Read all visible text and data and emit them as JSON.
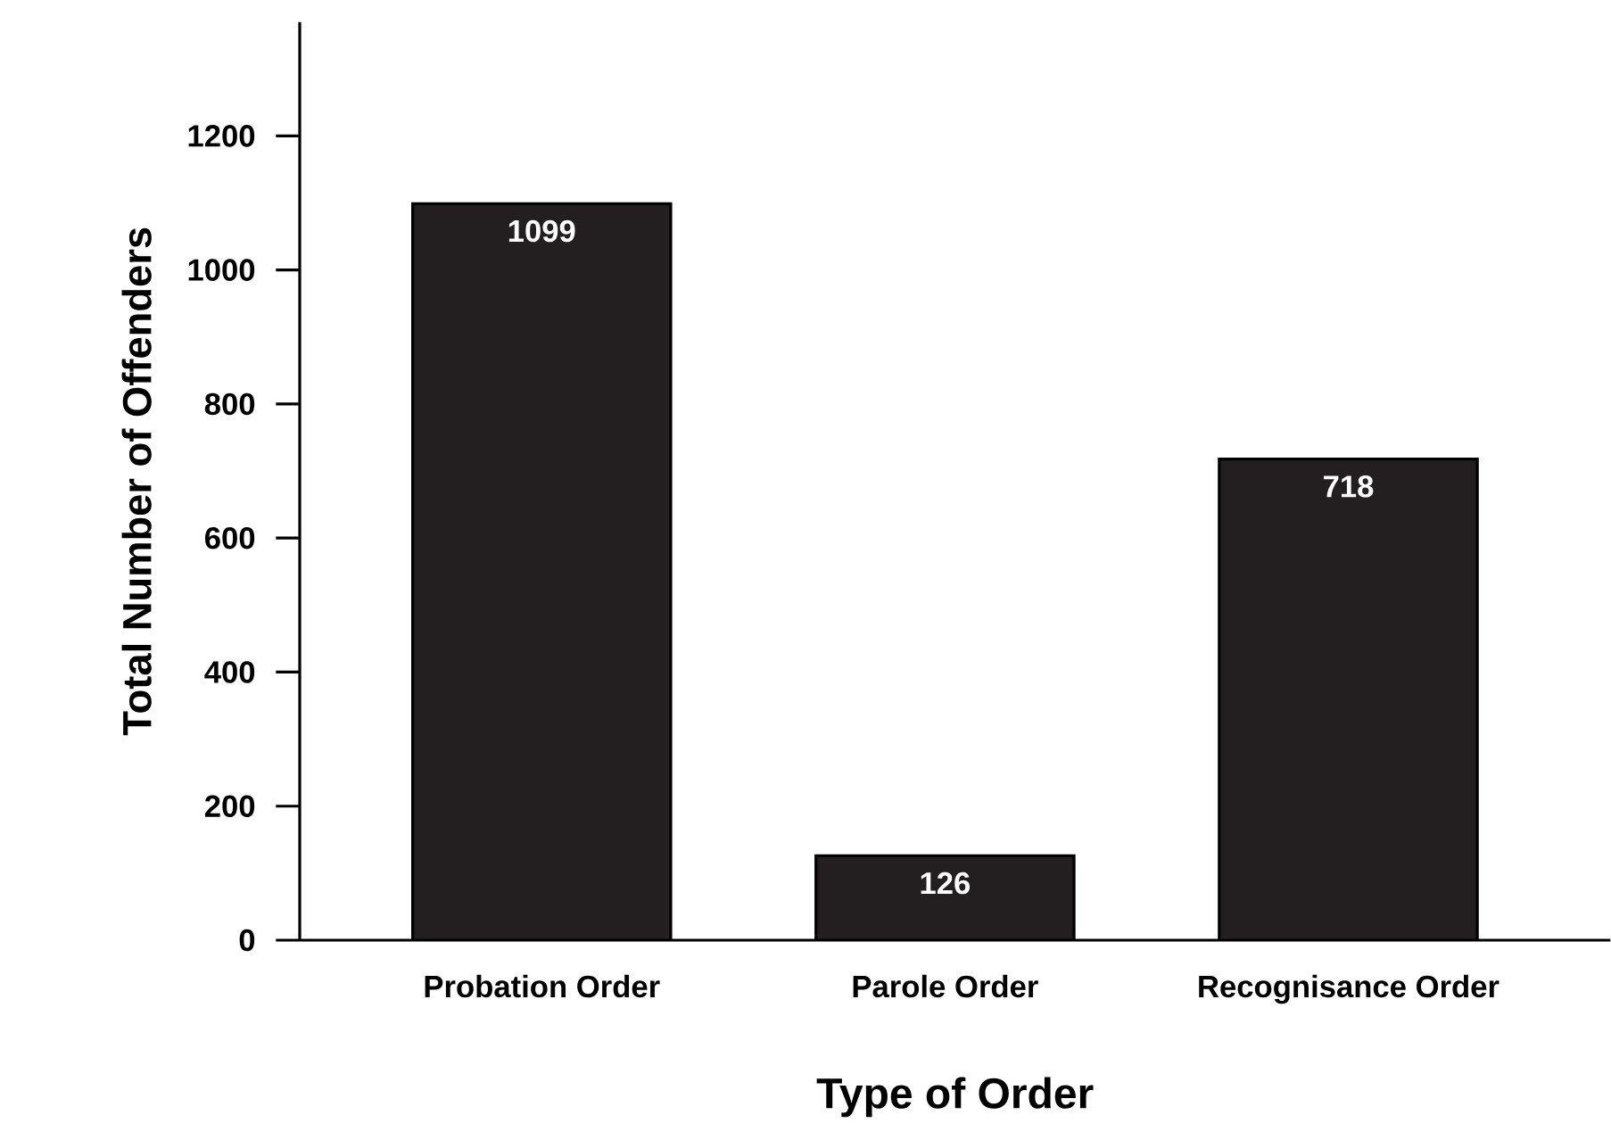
{
  "chart_data": {
    "type": "bar",
    "xlabel": "Type of Order",
    "ylabel": "Total Number of Offenders",
    "categories": [
      "Probation Order",
      "Parole Order",
      "Recognisance Order"
    ],
    "values": [
      1099,
      126,
      718
    ],
    "color": "#231f20",
    "ylim": [
      0,
      1370
    ],
    "yticks": [
      0,
      200,
      400,
      600,
      800,
      1000,
      1200
    ],
    "data_labels": true,
    "grid": false
  }
}
